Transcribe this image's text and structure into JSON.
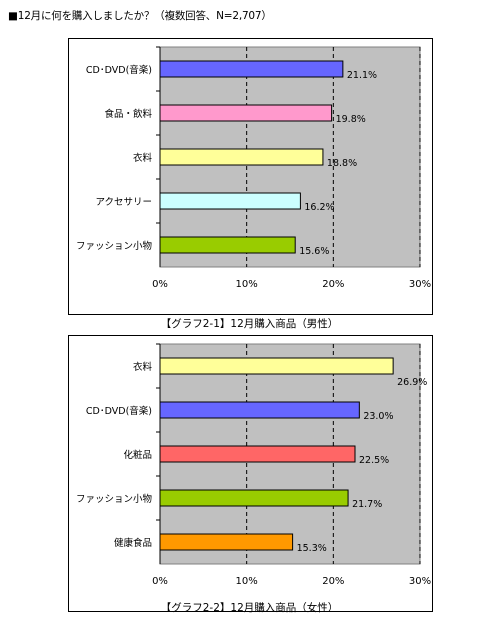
{
  "header": {
    "title": "■12月に何を購入しましたか？（複数回答、N=2,707）"
  },
  "colors": {
    "plot_bg": "#c0c0c0",
    "grid": "#000000"
  },
  "chart_data": [
    {
      "type": "bar",
      "orientation": "horizontal",
      "caption": "【グラフ2-1】12月購入商品（男性）",
      "categories": [
        "CD･DVD(音楽)",
        "食品・飲料",
        "衣料",
        "アクセサリー",
        "ファッション小物"
      ],
      "values": [
        21.1,
        19.8,
        18.8,
        16.2,
        15.6
      ],
      "value_labels": [
        "21.1%",
        "19.8%",
        "18.8%",
        "16.2%",
        "15.6%"
      ],
      "bar_colors": [
        "#6666ff",
        "#ff99cc",
        "#ffff99",
        "#ccffff",
        "#99cc00"
      ],
      "xlim": [
        0,
        30
      ],
      "xticks": [
        "0%",
        "10%",
        "20%",
        "30%"
      ],
      "grid": "vertical dashed",
      "legend": "none"
    },
    {
      "type": "bar",
      "orientation": "horizontal",
      "caption": "【グラフ2-2】12月購入商品（女性）",
      "categories": [
        "衣料",
        "CD･DVD(音楽)",
        "化粧品",
        "ファッション小物",
        "健康食品"
      ],
      "values": [
        26.9,
        23.0,
        22.5,
        21.7,
        15.3
      ],
      "value_labels": [
        "26.9%",
        "23.0%",
        "22.5%",
        "21.7%",
        "15.3%"
      ],
      "bar_colors": [
        "#ffff99",
        "#6666ff",
        "#ff6666",
        "#99cc00",
        "#ff9900"
      ],
      "xlim": [
        0,
        30
      ],
      "xticks": [
        "0%",
        "10%",
        "20%",
        "30%"
      ],
      "grid": "vertical dashed",
      "legend": "none"
    }
  ]
}
